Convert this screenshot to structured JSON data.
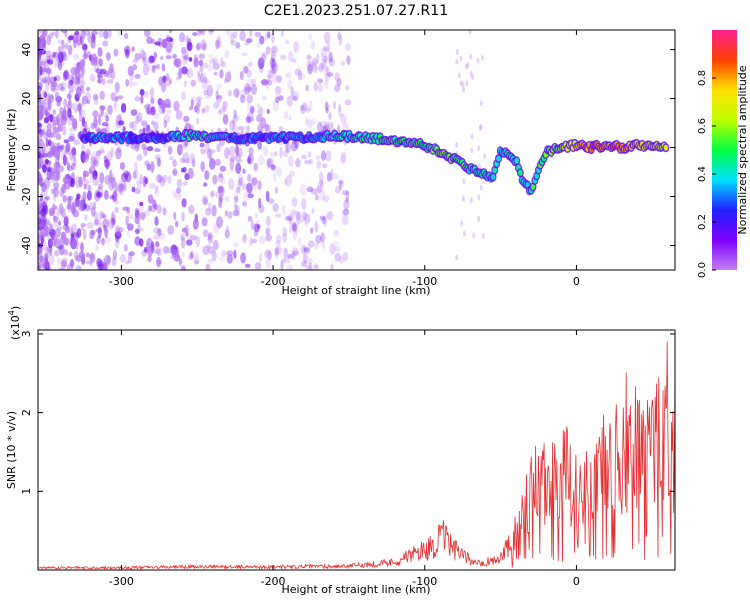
{
  "title": "C2E1.2023.251.07.27.R11",
  "chart_data": [
    {
      "type": "heatmap",
      "xlabel": "Height of straight line (km)",
      "ylabel": "Frequency (Hz)",
      "xlim": [
        -355,
        65
      ],
      "ylim": [
        -50,
        48
      ],
      "x_ticks": [
        -300,
        -200,
        -100,
        0
      ],
      "y_ticks": [
        -40,
        -20,
        0,
        20,
        40
      ],
      "colorbar": {
        "label": "Normalized spectral amplitude",
        "range": [
          0,
          1
        ],
        "ticks": [
          0.0,
          0.2,
          0.4,
          0.6,
          0.8
        ],
        "stops": [
          "#c080f0",
          "#8000ff",
          "#2020ff",
          "#00e0ff",
          "#00ff40",
          "#c0ff00",
          "#ffe000",
          "#ff4000",
          "#ff2090"
        ]
      },
      "ridge": [
        {
          "x": -325,
          "y": 4,
          "a": 0.3
        },
        {
          "x": -300,
          "y": 4,
          "a": 0.3
        },
        {
          "x": -270,
          "y": 4,
          "a": 0.3
        },
        {
          "x": -255,
          "y": 5,
          "a": 0.45
        },
        {
          "x": -240,
          "y": 4,
          "a": 0.35
        },
        {
          "x": -220,
          "y": 4,
          "a": 0.3
        },
        {
          "x": -200,
          "y": 4,
          "a": 0.3
        },
        {
          "x": -180,
          "y": 4,
          "a": 0.3
        },
        {
          "x": -160,
          "y": 5,
          "a": 0.4
        },
        {
          "x": -140,
          "y": 4,
          "a": 0.45
        },
        {
          "x": -120,
          "y": 3,
          "a": 0.5
        },
        {
          "x": -100,
          "y": 1,
          "a": 0.5
        },
        {
          "x": -85,
          "y": -3,
          "a": 0.55
        },
        {
          "x": -75,
          "y": -7,
          "a": 0.5
        },
        {
          "x": -65,
          "y": -10,
          "a": 0.45
        },
        {
          "x": -55,
          "y": -12,
          "a": 0.4
        },
        {
          "x": -50,
          "y": -1,
          "a": 0.45
        },
        {
          "x": -40,
          "y": -5,
          "a": 0.4
        },
        {
          "x": -35,
          "y": -14,
          "a": 0.4
        },
        {
          "x": -30,
          "y": -18,
          "a": 0.45
        },
        {
          "x": -20,
          "y": -2,
          "a": 0.5
        },
        {
          "x": -10,
          "y": 0,
          "a": 0.6
        },
        {
          "x": 0,
          "y": 1,
          "a": 0.7
        },
        {
          "x": 10,
          "y": 0,
          "a": 0.85
        },
        {
          "x": 20,
          "y": 1,
          "a": 0.85
        },
        {
          "x": 30,
          "y": 0,
          "a": 0.8
        },
        {
          "x": 40,
          "y": 1,
          "a": 0.75
        },
        {
          "x": 50,
          "y": 0,
          "a": 0.7
        },
        {
          "x": 60,
          "y": 0,
          "a": 0.6
        }
      ]
    },
    {
      "type": "line",
      "xlabel": "Height of straight line (km)",
      "ylabel": "SNR (10 * v/v)",
      "y_scale_label": "(x10",
      "y_scale_exponent": "4",
      "y_scale_suffix": ")",
      "xlim": [
        -355,
        65
      ],
      "ylim": [
        0,
        3.05
      ],
      "x_ticks": [
        -300,
        -200,
        -100,
        0
      ],
      "y_ticks": [
        1,
        2,
        3
      ],
      "color": "#e83030",
      "series": [
        {
          "x": [
            -355,
            -300,
            -250,
            -200,
            -150,
            -120,
            -105,
            -95,
            -88,
            -80,
            -70,
            -60,
            -50,
            -45,
            -40,
            -35,
            -30,
            -25,
            -20,
            -15,
            -10,
            -5,
            0,
            5,
            10,
            15,
            20,
            25,
            30,
            35,
            40,
            45,
            50,
            55,
            60,
            65
          ],
          "y": [
            0.03,
            0.03,
            0.04,
            0.04,
            0.05,
            0.1,
            0.22,
            0.3,
            0.42,
            0.25,
            0.12,
            0.1,
            0.15,
            0.3,
            0.55,
            0.85,
            1.0,
            1.05,
            1.05,
            1.1,
            1.15,
            1.2,
            1.25,
            1.25,
            1.3,
            1.3,
            1.35,
            1.35,
            1.4,
            1.45,
            1.55,
            1.5,
            1.55,
            1.6,
            1.5,
            1.45
          ]
        }
      ]
    }
  ]
}
